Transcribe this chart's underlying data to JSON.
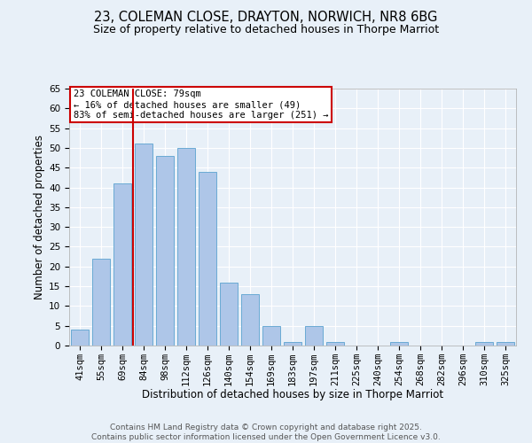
{
  "title1": "23, COLEMAN CLOSE, DRAYTON, NORWICH, NR8 6BG",
  "title2": "Size of property relative to detached houses in Thorpe Marriot",
  "xlabel": "Distribution of detached houses by size in Thorpe Marriot",
  "ylabel": "Number of detached properties",
  "categories": [
    "41sqm",
    "55sqm",
    "69sqm",
    "84sqm",
    "98sqm",
    "112sqm",
    "126sqm",
    "140sqm",
    "154sqm",
    "169sqm",
    "183sqm",
    "197sqm",
    "211sqm",
    "225sqm",
    "240sqm",
    "254sqm",
    "268sqm",
    "282sqm",
    "296sqm",
    "310sqm",
    "325sqm"
  ],
  "values": [
    4,
    22,
    41,
    51,
    48,
    50,
    44,
    16,
    13,
    5,
    1,
    5,
    1,
    0,
    0,
    1,
    0,
    0,
    0,
    1,
    1
  ],
  "bar_color": "#aec6e8",
  "bar_edge_color": "#6aaad4",
  "vline_color": "#cc0000",
  "annotation_text": "23 COLEMAN CLOSE: 79sqm\n← 16% of detached houses are smaller (49)\n83% of semi-detached houses are larger (251) →",
  "annotation_box_color": "#ffffff",
  "annotation_box_edge": "#cc0000",
  "ylim": [
    0,
    65
  ],
  "yticks": [
    0,
    5,
    10,
    15,
    20,
    25,
    30,
    35,
    40,
    45,
    50,
    55,
    60,
    65
  ],
  "bg_color": "#e8f0f8",
  "footer_text": "Contains HM Land Registry data © Crown copyright and database right 2025.\nContains public sector information licensed under the Open Government Licence v3.0.",
  "title1_fontsize": 10.5,
  "title2_fontsize": 9,
  "axis_label_fontsize": 8.5,
  "tick_fontsize": 7.5,
  "footer_fontsize": 6.5,
  "annot_fontsize": 7.5
}
